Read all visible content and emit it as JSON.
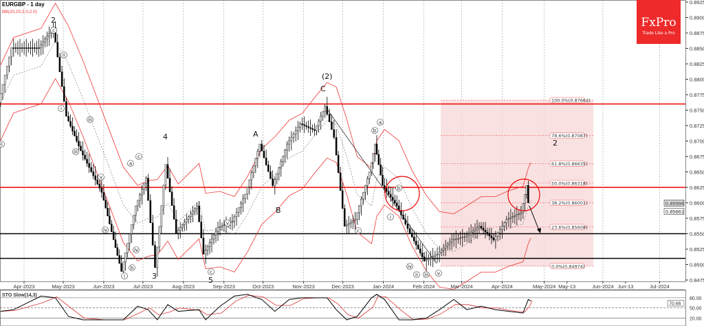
{
  "header": {
    "symbol_title": "EURGBP - 1 day",
    "indicator": "BB(20,20,2.0,2.0)"
  },
  "logo": {
    "brand": "FxPro",
    "tagline": "Trade Like a Pro",
    "color": "#ee2a2a"
  },
  "colors": {
    "resistance": "#ee0000",
    "support": "#000000",
    "fib_zone": "#f7d9d9",
    "candles": "#000000",
    "bollinger": "#ee3333",
    "sto_k": "#000000",
    "sto_d": "#dd3333"
  },
  "chart_data": {
    "type": "candlestick",
    "title": "EURGBP - 1 day",
    "ylim": [
      0.8475,
      0.8925
    ],
    "y_ticks": [
      "0.89250",
      "0.89000",
      "0.88750",
      "0.88500",
      "0.88250",
      "0.88000",
      "0.87750",
      "0.87500",
      "0.87250",
      "0.87000",
      "0.86750",
      "0.86500",
      "0.86250",
      "0.86000",
      "0.85750",
      "0.85500",
      "0.85250",
      "0.85000",
      "0.84750"
    ],
    "x_ticks": [
      {
        "label": "Apr-2023",
        "date": "2023-04-01"
      },
      {
        "label": "May-2023",
        "date": "2023-05-01"
      },
      {
        "label": "Jun-2023",
        "date": "2023-06-01"
      },
      {
        "label": "Jul-2023",
        "date": "2023-07-01"
      },
      {
        "label": "Aug-2023",
        "date": "2023-08-01"
      },
      {
        "label": "Sep-2023",
        "date": "2023-09-01"
      },
      {
        "label": "Oct-2023",
        "date": "2023-10-01"
      },
      {
        "label": "Nov-2023",
        "date": "2023-11-01"
      },
      {
        "label": "Dec-2023",
        "date": "2023-12-01"
      },
      {
        "label": "Jan-2024",
        "date": "2024-01-01"
      },
      {
        "label": "Feb-2024",
        "date": "2024-02-01"
      },
      {
        "label": "Mar-2024",
        "date": "2024-03-01"
      },
      {
        "label": "Apr-2024",
        "date": "2024-04-01"
      },
      {
        "label": "May-2024",
        "date": "2024-05-01"
      },
      {
        "label": "May-13",
        "date": "2024-05-13"
      },
      {
        "label": "Jun-2024",
        "date": "2024-06-01"
      },
      {
        "label": "Jun-13",
        "date": "2024-06-13"
      },
      {
        "label": "Jul-2024",
        "date": "2024-07-01"
      }
    ],
    "dates": [
      "2023-03-14",
      "2023-03-24",
      "2023-04-14",
      "2023-04-25",
      "2023-05-05",
      "2023-05-16",
      "2023-06-01",
      "2023-06-16",
      "2023-06-27",
      "2023-07-05",
      "2023-07-12",
      "2023-07-20",
      "2023-07-28",
      "2023-08-13",
      "2023-08-18",
      "2023-08-29",
      "2023-09-09",
      "2023-09-19",
      "2023-09-30",
      "2023-10-10",
      "2023-10-21",
      "2023-10-31",
      "2023-11-11",
      "2023-11-19",
      "2023-11-26",
      "2023-12-04",
      "2023-12-12",
      "2023-12-23",
      "2023-12-27",
      "2024-01-02",
      "2024-01-13",
      "2024-01-23",
      "2024-02-03",
      "2024-02-13",
      "2024-02-24",
      "2024-03-05",
      "2024-03-16",
      "2024-03-27",
      "2024-04-06",
      "2024-04-17",
      "2024-04-21",
      "2024-04-23"
    ],
    "close": [
      0.8762,
      0.8851,
      0.8851,
      0.8884,
      0.874,
      0.8684,
      0.8617,
      0.8489,
      0.8595,
      0.864,
      0.8495,
      0.8662,
      0.8551,
      0.8595,
      0.8517,
      0.856,
      0.857,
      0.8614,
      0.8695,
      0.8628,
      0.8695,
      0.8728,
      0.8717,
      0.8756,
      0.8706,
      0.8562,
      0.8573,
      0.865,
      0.8695,
      0.8628,
      0.8595,
      0.8551,
      0.8506,
      0.8517,
      0.854,
      0.8545,
      0.8562,
      0.854,
      0.8573,
      0.8584,
      0.8628,
      0.86
    ],
    "price_labels": [
      "0.85996",
      "0.85861"
    ],
    "horizontal_levels": {
      "resistance": [
        0.876,
        0.8625
      ],
      "support": [
        0.855,
        0.851
      ]
    },
    "fibonacci": [
      {
        "label": "100.0%(0.87662)",
        "price": 0.87662
      },
      {
        "label": "78.6%(0.87087)",
        "price": 0.87087
      },
      {
        "label": "61.8%(0.86635)",
        "price": 0.86635
      },
      {
        "label": "50.0%(0.86318)",
        "price": 0.86318
      },
      {
        "label": "38.2%(0.86001)",
        "price": 0.86001
      },
      {
        "label": "23.6%(0.85608)",
        "price": 0.85608
      },
      {
        "label": "0.0%(0.84974)",
        "price": 0.84974
      }
    ],
    "wave_labels": [
      "2",
      "(2)",
      "C",
      "A",
      "B",
      "4",
      "3",
      "5",
      "2"
    ],
    "circled_labels": [
      "c",
      "ii",
      "i",
      "iii",
      "iv",
      "v",
      "a",
      "b",
      "c",
      "i",
      "ii",
      "iii",
      "iv",
      "v",
      "c",
      "a",
      "b",
      "c",
      "b",
      "i",
      "ii",
      "iii",
      "iv",
      "v"
    ],
    "stochastic": {
      "title": "STO Slow(14,3)",
      "ylim": [
        0,
        100
      ],
      "levels": [
        80,
        50,
        20
      ],
      "level_labels": [
        "80.00",
        "70.66",
        "50.00",
        "20.00"
      ],
      "k": [
        40,
        45,
        85,
        80,
        25,
        15,
        15,
        15,
        55,
        45,
        15,
        60,
        40,
        45,
        15,
        55,
        85,
        90,
        75,
        40,
        75,
        80,
        80,
        80,
        45,
        15,
        25,
        80,
        90,
        75,
        15,
        15,
        20,
        45,
        75,
        45,
        55,
        45,
        40,
        35,
        75,
        70.66
      ]
    }
  }
}
